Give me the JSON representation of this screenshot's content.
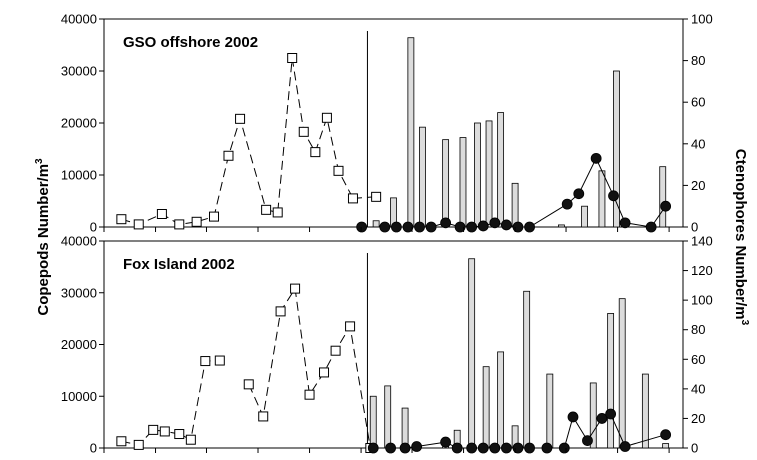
{
  "chart_data": {
    "type": "bar+line",
    "left_axis_label": "Copepods Number/m",
    "left_axis_label_sup": "3",
    "right_axis_label": "Ctenophores Number/m",
    "right_axis_label_sup": "3",
    "panels": [
      {
        "title": "GSO offshore 2002",
        "left_ylim": [
          0,
          40000
        ],
        "left_ticks": [
          "0",
          "10000",
          "20000",
          "30000",
          "40000"
        ],
        "left_tick_values": [
          0,
          10000,
          20000,
          30000,
          40000
        ],
        "right_ylim": [
          0,
          100
        ],
        "right_ticks": [
          "0",
          "20",
          "40",
          "60",
          "80",
          "100"
        ],
        "right_tick_values": [
          0,
          20,
          40,
          60,
          80,
          100
        ],
        "x_range": [
          0,
          100
        ],
        "x_ticks": [
          0,
          8.9,
          17.7,
          26.6,
          35.5,
          44.4,
          53.2,
          62.1,
          71.0,
          79.8,
          88.7,
          97.6
        ],
        "divider_x": 45.5,
        "copepods": {
          "name": "Copepods",
          "marker": "open-square",
          "segments": [
            [
              [
                3,
                1500
              ],
              [
                6,
                500
              ],
              [
                10,
                2500
              ],
              [
                13,
                500
              ],
              [
                16,
                1000
              ],
              [
                19,
                2000
              ],
              [
                21.5,
                13700
              ],
              [
                23.5,
                20800
              ],
              [
                28,
                3300
              ],
              [
                30,
                2800
              ],
              [
                32.5,
                32500
              ],
              [
                34.5,
                18300
              ],
              [
                36.5,
                14400
              ],
              [
                38.5,
                21000
              ],
              [
                40.5,
                10800
              ],
              [
                43,
                5500
              ]
            ],
            [
              [
                43,
                5500
              ],
              [
                47,
                5800
              ]
            ]
          ]
        },
        "ctenophores_bars": [
          {
            "x": 47,
            "value": 3
          },
          {
            "x": 50,
            "value": 14
          },
          {
            "x": 53,
            "value": 91
          },
          {
            "x": 55,
            "value": 48
          },
          {
            "x": 59,
            "value": 42
          },
          {
            "x": 62,
            "value": 43
          },
          {
            "x": 64.5,
            "value": 50
          },
          {
            "x": 66.5,
            "value": 51
          },
          {
            "x": 68.5,
            "value": 55
          },
          {
            "x": 71,
            "value": 21
          },
          {
            "x": 79,
            "value": 1
          },
          {
            "x": 83,
            "value": 10
          },
          {
            "x": 86,
            "value": 27
          },
          {
            "x": 88.5,
            "value": 75
          },
          {
            "x": 96.5,
            "value": 29
          }
        ],
        "ctenophores_points": {
          "name": "Ctenophores",
          "marker": "filled-circle",
          "points": [
            [
              44.5,
              0
            ],
            [
              48.5,
              0
            ],
            [
              50.5,
              0
            ],
            [
              52.5,
              0
            ],
            [
              54.5,
              0
            ],
            [
              56.5,
              0
            ],
            [
              59,
              2
            ],
            [
              61.5,
              0
            ],
            [
              63.5,
              0
            ],
            [
              65.5,
              0.5
            ],
            [
              67.5,
              2
            ],
            [
              69.5,
              1
            ],
            [
              71.5,
              0
            ],
            [
              73.5,
              0
            ],
            [
              80,
              11
            ],
            [
              82,
              16
            ],
            [
              85,
              33
            ],
            [
              88,
              15
            ],
            [
              90,
              2
            ],
            [
              94.5,
              0
            ],
            [
              97,
              10
            ]
          ]
        }
      },
      {
        "title": "Fox Island 2002",
        "left_ylim": [
          0,
          40000
        ],
        "left_ticks": [
          "0",
          "10000",
          "20000",
          "30000",
          "40000"
        ],
        "left_tick_values": [
          0,
          10000,
          20000,
          30000,
          40000
        ],
        "right_ylim": [
          0,
          140
        ],
        "right_ticks": [
          "0",
          "20",
          "40",
          "60",
          "80",
          "100",
          "120",
          "140"
        ],
        "right_tick_values": [
          0,
          20,
          40,
          60,
          80,
          100,
          120,
          140
        ],
        "x_range": [
          0,
          100
        ],
        "x_ticks": [
          0,
          8.9,
          17.7,
          26.6,
          35.5,
          44.4,
          53.2,
          62.1,
          71.0,
          79.8,
          88.7,
          97.6
        ],
        "divider_x": 45.5,
        "copepods": {
          "name": "Copepods",
          "marker": "open-square",
          "segments": [
            [
              [
                3,
                1300
              ],
              [
                6,
                600
              ],
              [
                8.5,
                3500
              ],
              [
                10.5,
                3200
              ],
              [
                13,
                2700
              ],
              [
                15,
                1600
              ],
              [
                17.5,
                16800
              ],
              [
                20,
                16900
              ]
            ],
            [
              [
                25,
                12300
              ],
              [
                27.5,
                6100
              ],
              [
                30.5,
                26400
              ],
              [
                33,
                30800
              ],
              [
                35.5,
                10300
              ],
              [
                38,
                14600
              ],
              [
                40,
                18800
              ],
              [
                42.5,
                23500
              ],
              [
                46,
                0
              ]
            ]
          ]
        },
        "ctenophores_bars": [
          {
            "x": 46.5,
            "value": 35
          },
          {
            "x": 49,
            "value": 42
          },
          {
            "x": 52,
            "value": 27
          },
          {
            "x": 59,
            "value": 1
          },
          {
            "x": 61,
            "value": 12
          },
          {
            "x": 63.5,
            "value": 128
          },
          {
            "x": 66,
            "value": 55
          },
          {
            "x": 68.5,
            "value": 65
          },
          {
            "x": 71,
            "value": 15
          },
          {
            "x": 73,
            "value": 106
          },
          {
            "x": 77,
            "value": 50
          },
          {
            "x": 84.5,
            "value": 44
          },
          {
            "x": 87.5,
            "value": 91
          },
          {
            "x": 89.5,
            "value": 101
          },
          {
            "x": 93.5,
            "value": 50
          },
          {
            "x": 97,
            "value": 3
          }
        ],
        "ctenophores_points": {
          "name": "Ctenophores",
          "marker": "filled-circle",
          "points": [
            [
              46.5,
              0
            ],
            [
              49.5,
              0
            ],
            [
              52,
              0
            ],
            [
              54,
              1
            ],
            [
              59,
              4
            ],
            [
              61,
              0
            ],
            [
              63.5,
              0
            ],
            [
              65.5,
              0
            ],
            [
              67.5,
              0
            ],
            [
              69.5,
              0
            ],
            [
              71.5,
              0
            ],
            [
              73.5,
              0
            ],
            [
              76.5,
              0
            ],
            [
              79.5,
              0
            ],
            [
              81,
              21
            ],
            [
              83.5,
              5
            ],
            [
              86,
              20
            ],
            [
              87.5,
              23
            ],
            [
              90,
              1
            ],
            [
              97,
              9
            ]
          ]
        }
      }
    ]
  }
}
